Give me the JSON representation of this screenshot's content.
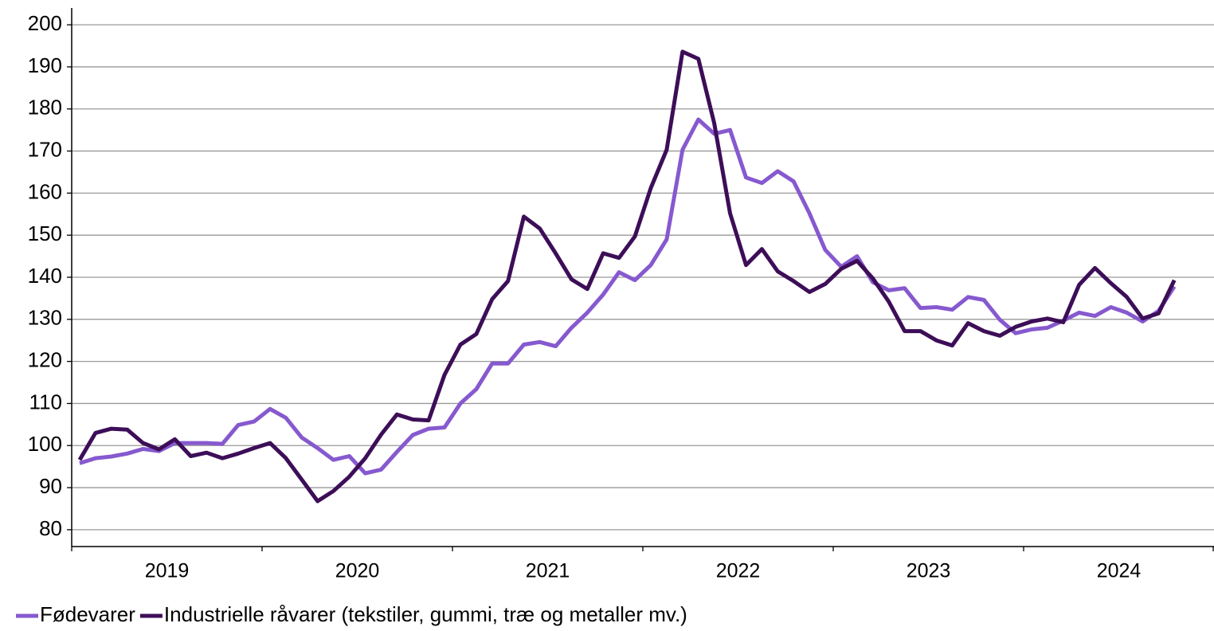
{
  "chart_data": {
    "type": "line",
    "xlim": [
      2019,
      2025
    ],
    "xticks": [
      2019,
      2020,
      2021,
      2022,
      2023,
      2024
    ],
    "ylim": [
      76,
      204
    ],
    "yticks": [
      80,
      90,
      100,
      110,
      120,
      130,
      140,
      150,
      160,
      170,
      180,
      190,
      200
    ],
    "grid": true,
    "legend": "bottom",
    "series": [
      {
        "name": "Fødevarer",
        "color": "#8659cf",
        "values": [
          95.8,
          97,
          97.4,
          98.1,
          99.2,
          98.7,
          100.6,
          100.6,
          100.6,
          100.4,
          104.9,
          105.7,
          108.7,
          106.6,
          101.9,
          99.4,
          96.6,
          97.5,
          93.4,
          94.3,
          98.5,
          102.5,
          104,
          104.3,
          110,
          113.4,
          119.5,
          119.5,
          124,
          124.6,
          123.6,
          128,
          131.6,
          135.9,
          141.2,
          139.3,
          142.9,
          149,
          170.3,
          177.5,
          174.1,
          175,
          163.7,
          162.4,
          165.2,
          162.8,
          155.2,
          146.5,
          142.5,
          145,
          138.8,
          136.9,
          137.4,
          132.7,
          132.9,
          132.3,
          135.3,
          134.6,
          129.9,
          126.7,
          127.6,
          128,
          129.7,
          131.6,
          130.8,
          132.9,
          131.6,
          129.5,
          132,
          137.8
        ]
      },
      {
        "name": "Industrielle råvarer (tekstiler, gummi, træ og metaller mv.)",
        "color": "#3d0e58",
        "values": [
          96.6,
          103,
          104,
          103.8,
          100.6,
          99.1,
          101.5,
          97.5,
          98.3,
          97,
          98.1,
          99.4,
          100.6,
          97,
          91.9,
          86.8,
          89.2,
          92.6,
          97,
          102.6,
          107.4,
          106.2,
          106,
          116.8,
          124,
          126.5,
          134.8,
          139.1,
          154.4,
          151.6,
          145.7,
          139.5,
          137.2,
          145.7,
          144.6,
          149.7,
          161.2,
          170.3,
          193.6,
          191.9,
          176.6,
          155.2,
          142.9,
          146.7,
          141.4,
          139.1,
          136.5,
          138.4,
          142,
          143.9,
          139.7,
          134.2,
          127.2,
          127.2,
          125,
          123.8,
          129.1,
          127.2,
          126.1,
          128.2,
          129.5,
          130.2,
          129.3,
          138.2,
          142.2,
          138.6,
          135.3,
          130.2,
          131.4,
          139.3
        ]
      }
    ]
  }
}
